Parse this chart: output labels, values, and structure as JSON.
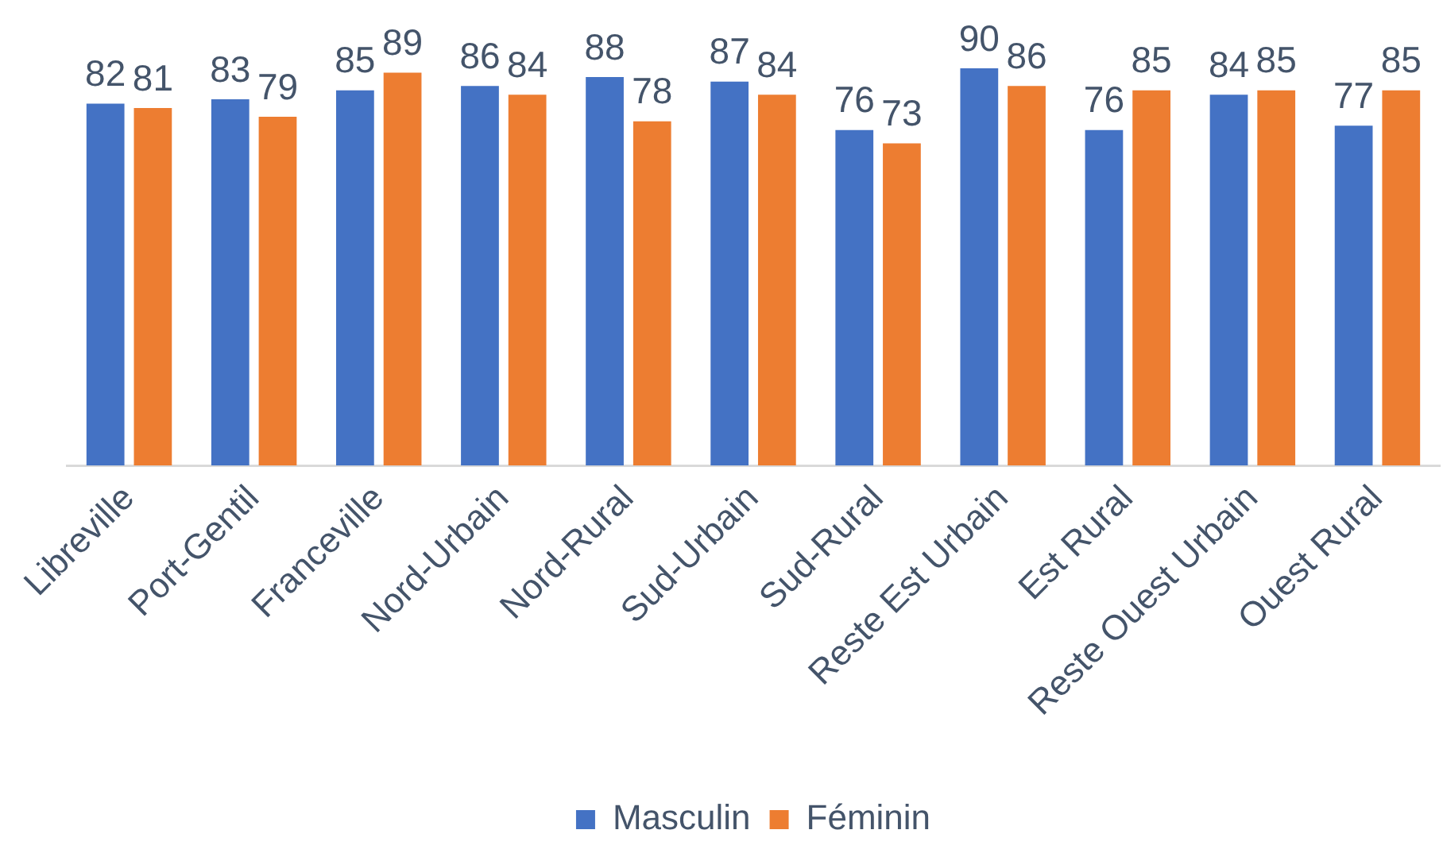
{
  "chart_data": {
    "type": "bar",
    "categories": [
      "Libreville",
      "Port-Gentil",
      "Franceville",
      "Nord-Urbain",
      "Nord-Rural",
      "Sud-Urbain",
      "Sud-Rural",
      "Reste Est Urbain",
      "Est Rural",
      "Reste Ouest Urbain",
      "Ouest Rural"
    ],
    "series": [
      {
        "name": "Masculin",
        "color": "#4472c4",
        "values": [
          82,
          83,
          85,
          86,
          88,
          87,
          76,
          90,
          76,
          84,
          77
        ]
      },
      {
        "name": "Féminin",
        "color": "#ed7d31",
        "values": [
          81,
          79,
          89,
          84,
          78,
          84,
          73,
          86,
          85,
          85,
          85
        ]
      }
    ],
    "data_labels": true,
    "legend": "bottom",
    "grid": false,
    "tick_labels": "x"
  }
}
